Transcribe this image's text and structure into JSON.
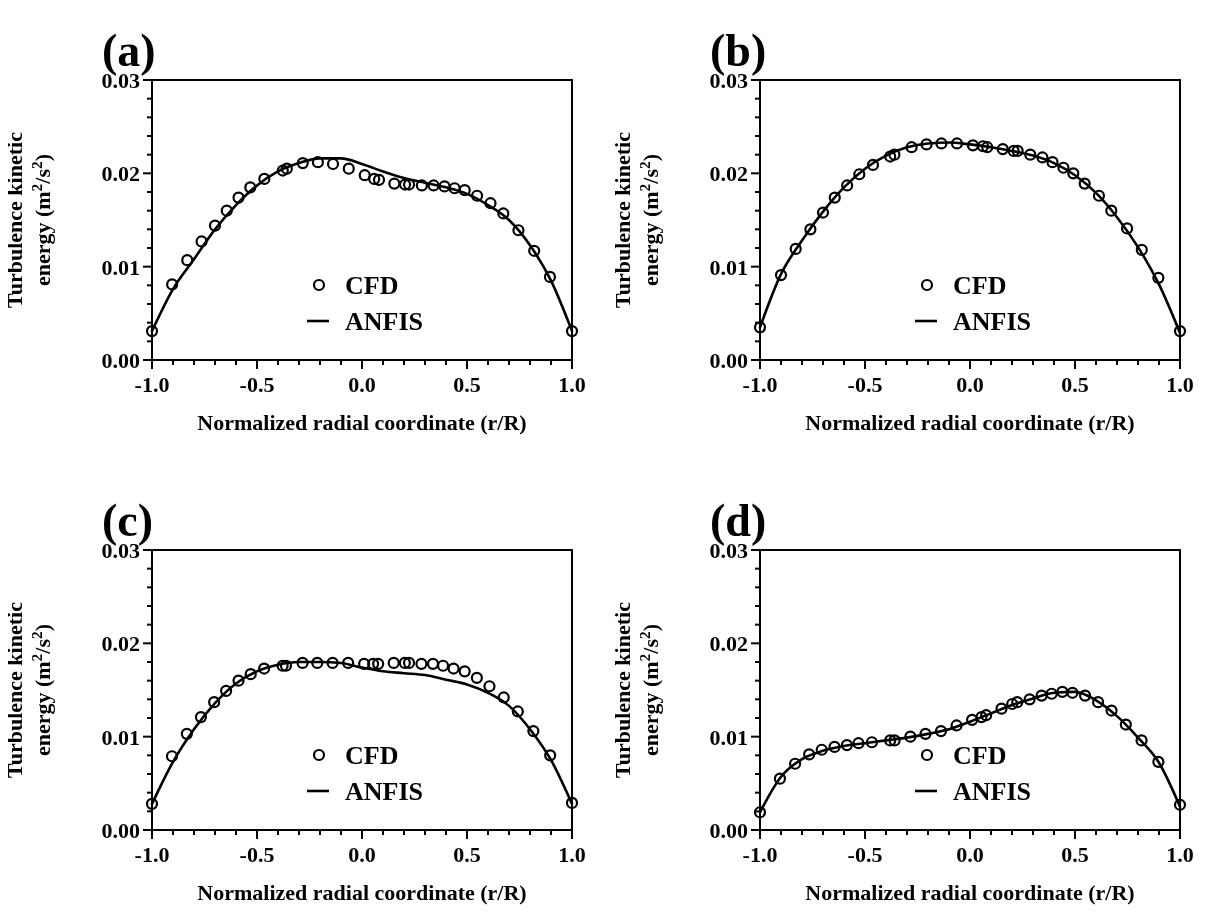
{
  "chart_data": [
    {
      "type": "line",
      "title": "(a)",
      "xlabel": "Normalized radial coordinate (r/R)",
      "ylabel": "Turbulence kinetic energy (m$^{2}$/s$^{2}$)",
      "xlim": [
        -1,
        1
      ],
      "ylim": [
        0,
        0.03
      ],
      "xticks": [
        {
          "value": -1,
          "label": "-1.0"
        },
        {
          "value": -0.9,
          "label": null
        },
        {
          "value": -0.8,
          "label": null
        },
        {
          "value": -0.7,
          "label": null
        },
        {
          "value": -0.6,
          "label": null
        },
        {
          "value": -0.5,
          "label": "-0.5"
        },
        {
          "value": -0.4,
          "label": null
        },
        {
          "value": -0.3,
          "label": null
        },
        {
          "value": -0.2,
          "label": null
        },
        {
          "value": -0.1,
          "label": null
        },
        {
          "value": 0,
          "label": "0.0"
        },
        {
          "value": 0.1,
          "label": null
        },
        {
          "value": 0.2,
          "label": null
        },
        {
          "value": 0.3,
          "label": null
        },
        {
          "value": 0.4,
          "label": null
        },
        {
          "value": 0.5,
          "label": "0.5"
        },
        {
          "value": 0.6,
          "label": null
        },
        {
          "value": 0.7,
          "label": null
        },
        {
          "value": 0.8,
          "label": null
        },
        {
          "value": 0.9,
          "label": null
        },
        {
          "value": 1,
          "label": "1.0"
        }
      ],
      "yticks": [
        {
          "value": 0,
          "label": "0.00"
        },
        {
          "value": 0.002,
          "label": null
        },
        {
          "value": 0.004,
          "label": null
        },
        {
          "value": 0.006,
          "label": null
        },
        {
          "value": 0.008,
          "label": null
        },
        {
          "value": 0.01,
          "label": "0.01"
        },
        {
          "value": 0.012,
          "label": null
        },
        {
          "value": 0.014,
          "label": null
        },
        {
          "value": 0.016,
          "label": null
        },
        {
          "value": 0.018,
          "label": null
        },
        {
          "value": 0.02,
          "label": "0.02"
        },
        {
          "value": 0.022,
          "label": null
        },
        {
          "value": 0.024,
          "label": null
        },
        {
          "value": 0.026,
          "label": null
        },
        {
          "value": 0.028,
          "label": null
        },
        {
          "value": 0.03,
          "label": "0.03"
        }
      ],
      "grid": false,
      "legend": "bottom",
      "series": [
        {
          "name": "CFD",
          "type": "scatter",
          "marker": "circle",
          "color": "#000000",
          "x": [
            -1,
            -0.904,
            -0.832,
            -0.764,
            -0.7,
            -0.644,
            -0.588,
            -0.532,
            -0.465,
            -0.377,
            -0.358,
            -0.282,
            -0.21,
            -0.138,
            -0.063,
            0.013,
            0.058,
            0.081,
            0.154,
            0.205,
            0.224,
            0.285,
            0.341,
            0.393,
            0.441,
            0.489,
            0.548,
            0.612,
            0.673,
            0.745,
            0.82,
            0.895,
            1
          ],
          "values": [
            0.0031,
            0.0081,
            0.0107,
            0.0127,
            0.0144,
            0.016,
            0.0174,
            0.0185,
            0.0194,
            0.0203,
            0.0205,
            0.0211,
            0.0212,
            0.021,
            0.0205,
            0.0198,
            0.0194,
            0.0193,
            0.0189,
            0.0188,
            0.0188,
            0.0187,
            0.0187,
            0.0186,
            0.0184,
            0.0182,
            0.0176,
            0.0168,
            0.0157,
            0.0139,
            0.0117,
            0.0089,
            0.0031
          ]
        },
        {
          "name": "ANFIS",
          "type": "line",
          "marker": "none",
          "line_style": "solid",
          "color": "#000000",
          "x": [
            -1,
            -0.9,
            -0.8,
            -0.7,
            -0.6,
            -0.5,
            -0.4,
            -0.3,
            -0.2,
            -0.1,
            0,
            0.1,
            0.2,
            0.3,
            0.4,
            0.5,
            0.6,
            0.7,
            0.8,
            0.9,
            1
          ],
          "values": [
            0.0031,
            0.0076,
            0.0108,
            0.014,
            0.0166,
            0.0187,
            0.0202,
            0.0211,
            0.0216,
            0.0216,
            0.021,
            0.0202,
            0.0195,
            0.019,
            0.0185,
            0.0178,
            0.0166,
            0.015,
            0.0123,
            0.0085,
            0.0031
          ]
        }
      ]
    },
    {
      "type": "line",
      "title": "(b)",
      "xlabel": "Normalized radial coordinate (r/R)",
      "ylabel": "Turbulence kinetic energy (m$^{2}$/s$^{2}$)",
      "xlim": [
        -1,
        1
      ],
      "ylim": [
        0,
        0.03
      ],
      "xticks": [
        {
          "value": -1,
          "label": "-1.0"
        },
        {
          "value": -0.9,
          "label": null
        },
        {
          "value": -0.8,
          "label": null
        },
        {
          "value": -0.7,
          "label": null
        },
        {
          "value": -0.6,
          "label": null
        },
        {
          "value": -0.5,
          "label": "-0.5"
        },
        {
          "value": -0.4,
          "label": null
        },
        {
          "value": -0.3,
          "label": null
        },
        {
          "value": -0.2,
          "label": null
        },
        {
          "value": -0.1,
          "label": null
        },
        {
          "value": 0,
          "label": "0.0"
        },
        {
          "value": 0.1,
          "label": null
        },
        {
          "value": 0.2,
          "label": null
        },
        {
          "value": 0.3,
          "label": null
        },
        {
          "value": 0.4,
          "label": null
        },
        {
          "value": 0.5,
          "label": "0.5"
        },
        {
          "value": 0.6,
          "label": null
        },
        {
          "value": 0.7,
          "label": null
        },
        {
          "value": 0.8,
          "label": null
        },
        {
          "value": 0.9,
          "label": null
        },
        {
          "value": 1,
          "label": "1.0"
        }
      ],
      "yticks": [
        {
          "value": 0,
          "label": "0.00"
        },
        {
          "value": 0.002,
          "label": null
        },
        {
          "value": 0.004,
          "label": null
        },
        {
          "value": 0.006,
          "label": null
        },
        {
          "value": 0.008,
          "label": null
        },
        {
          "value": 0.01,
          "label": "0.01"
        },
        {
          "value": 0.012,
          "label": null
        },
        {
          "value": 0.014,
          "label": null
        },
        {
          "value": 0.016,
          "label": null
        },
        {
          "value": 0.018,
          "label": null
        },
        {
          "value": 0.02,
          "label": "0.02"
        },
        {
          "value": 0.022,
          "label": null
        },
        {
          "value": 0.024,
          "label": null
        },
        {
          "value": 0.026,
          "label": null
        },
        {
          "value": 0.028,
          "label": null
        },
        {
          "value": 0.03,
          "label": "0.03"
        }
      ],
      "grid": false,
      "legend": "bottom",
      "series": [
        {
          "name": "CFD",
          "type": "scatter",
          "marker": "circle",
          "color": "#000000",
          "x": [
            -1,
            -0.9,
            -0.83,
            -0.76,
            -0.7,
            -0.644,
            -0.585,
            -0.527,
            -0.462,
            -0.38,
            -0.36,
            -0.278,
            -0.207,
            -0.136,
            -0.062,
            0.014,
            0.062,
            0.082,
            0.156,
            0.208,
            0.227,
            0.287,
            0.345,
            0.393,
            0.445,
            0.492,
            0.546,
            0.614,
            0.673,
            0.748,
            0.818,
            0.897,
            1
          ],
          "values": [
            0.0035,
            0.0091,
            0.0119,
            0.014,
            0.0158,
            0.0174,
            0.0187,
            0.0199,
            0.0209,
            0.0218,
            0.022,
            0.0228,
            0.0231,
            0.0232,
            0.0232,
            0.023,
            0.0229,
            0.0228,
            0.0226,
            0.0224,
            0.0224,
            0.022,
            0.0217,
            0.0212,
            0.0206,
            0.02,
            0.0189,
            0.0176,
            0.016,
            0.0141,
            0.0118,
            0.0088,
            0.0031
          ]
        },
        {
          "name": "ANFIS",
          "type": "line",
          "marker": "none",
          "line_style": "solid",
          "color": "#000000",
          "x": [
            -1,
            -0.9,
            -0.8,
            -0.7,
            -0.6,
            -0.5,
            -0.4,
            -0.3,
            -0.2,
            -0.1,
            0,
            0.1,
            0.2,
            0.3,
            0.4,
            0.5,
            0.6,
            0.7,
            0.8,
            0.9,
            1
          ],
          "values": [
            0.0035,
            0.0092,
            0.0128,
            0.0159,
            0.0185,
            0.0205,
            0.0219,
            0.0228,
            0.0232,
            0.0233,
            0.0231,
            0.0228,
            0.0224,
            0.0219,
            0.0211,
            0.0198,
            0.0179,
            0.0153,
            0.0121,
            0.0081,
            0.0029
          ]
        }
      ]
    },
    {
      "type": "line",
      "title": "(c)",
      "xlabel": "Normalized radial coordinate (r/R)",
      "ylabel": "Turbulence kinetic energy (m$^{2}$/s$^{2}$)",
      "xlim": [
        -1,
        1
      ],
      "ylim": [
        0,
        0.03
      ],
      "xticks": [
        {
          "value": -1,
          "label": "-1.0"
        },
        {
          "value": -0.9,
          "label": null
        },
        {
          "value": -0.8,
          "label": null
        },
        {
          "value": -0.7,
          "label": null
        },
        {
          "value": -0.6,
          "label": null
        },
        {
          "value": -0.5,
          "label": "-0.5"
        },
        {
          "value": -0.4,
          "label": null
        },
        {
          "value": -0.3,
          "label": null
        },
        {
          "value": -0.2,
          "label": null
        },
        {
          "value": -0.1,
          "label": null
        },
        {
          "value": 0,
          "label": "0.0"
        },
        {
          "value": 0.1,
          "label": null
        },
        {
          "value": 0.2,
          "label": null
        },
        {
          "value": 0.3,
          "label": null
        },
        {
          "value": 0.4,
          "label": null
        },
        {
          "value": 0.5,
          "label": "0.5"
        },
        {
          "value": 0.6,
          "label": null
        },
        {
          "value": 0.7,
          "label": null
        },
        {
          "value": 0.8,
          "label": null
        },
        {
          "value": 0.9,
          "label": null
        },
        {
          "value": 1,
          "label": "1.0"
        }
      ],
      "yticks": [
        {
          "value": 0,
          "label": "0.00"
        },
        {
          "value": 0.002,
          "label": null
        },
        {
          "value": 0.004,
          "label": null
        },
        {
          "value": 0.006,
          "label": null
        },
        {
          "value": 0.008,
          "label": null
        },
        {
          "value": 0.01,
          "label": "0.01"
        },
        {
          "value": 0.012,
          "label": null
        },
        {
          "value": 0.014,
          "label": null
        },
        {
          "value": 0.016,
          "label": null
        },
        {
          "value": 0.018,
          "label": null
        },
        {
          "value": 0.02,
          "label": "0.02"
        },
        {
          "value": 0.022,
          "label": null
        },
        {
          "value": 0.024,
          "label": null
        },
        {
          "value": 0.026,
          "label": null
        },
        {
          "value": 0.028,
          "label": null
        },
        {
          "value": 0.03,
          "label": "0.03"
        }
      ],
      "grid": false,
      "legend": "bottom",
      "series": [
        {
          "name": "CFD",
          "type": "scatter",
          "marker": "circle",
          "color": "#000000",
          "x": [
            -1,
            -0.905,
            -0.834,
            -0.767,
            -0.704,
            -0.647,
            -0.588,
            -0.53,
            -0.466,
            -0.378,
            -0.362,
            -0.283,
            -0.213,
            -0.14,
            -0.066,
            0.01,
            0.053,
            0.077,
            0.151,
            0.204,
            0.224,
            0.283,
            0.338,
            0.386,
            0.436,
            0.489,
            0.547,
            0.607,
            0.675,
            0.742,
            0.816,
            0.896,
            1
          ],
          "values": [
            0.0028,
            0.0079,
            0.0103,
            0.0121,
            0.0137,
            0.0149,
            0.016,
            0.0167,
            0.0173,
            0.0176,
            0.0176,
            0.0179,
            0.0179,
            0.0179,
            0.0179,
            0.0178,
            0.0178,
            0.0178,
            0.0179,
            0.0179,
            0.0179,
            0.0178,
            0.0178,
            0.0176,
            0.0173,
            0.017,
            0.0163,
            0.0154,
            0.0142,
            0.0127,
            0.0106,
            0.008,
            0.0029
          ]
        },
        {
          "name": "ANFIS",
          "type": "line",
          "marker": "none",
          "line_style": "solid",
          "color": "#000000",
          "x": [
            -1,
            -0.9,
            -0.8,
            -0.7,
            -0.6,
            -0.5,
            -0.4,
            -0.3,
            -0.2,
            -0.1,
            0,
            0.1,
            0.2,
            0.3,
            0.4,
            0.5,
            0.6,
            0.7,
            0.8,
            0.9,
            1
          ],
          "values": [
            0.0028,
            0.0073,
            0.0108,
            0.0136,
            0.0157,
            0.017,
            0.0177,
            0.018,
            0.018,
            0.0179,
            0.0174,
            0.017,
            0.0168,
            0.0166,
            0.0161,
            0.0156,
            0.0147,
            0.0133,
            0.0108,
            0.0075,
            0.0028
          ]
        }
      ]
    },
    {
      "type": "line",
      "title": "(d)",
      "xlabel": "Normalized radial coordinate (r/R)",
      "ylabel": "Turbulence kinetic energy (m$^{2}$/s$^{2}$)",
      "xlim": [
        -1,
        1
      ],
      "ylim": [
        0,
        0.03
      ],
      "xticks": [
        {
          "value": -1,
          "label": "-1.0"
        },
        {
          "value": -0.9,
          "label": null
        },
        {
          "value": -0.8,
          "label": null
        },
        {
          "value": -0.7,
          "label": null
        },
        {
          "value": -0.6,
          "label": null
        },
        {
          "value": -0.5,
          "label": "-0.5"
        },
        {
          "value": -0.4,
          "label": null
        },
        {
          "value": -0.3,
          "label": null
        },
        {
          "value": -0.2,
          "label": null
        },
        {
          "value": -0.1,
          "label": null
        },
        {
          "value": 0,
          "label": "0.0"
        },
        {
          "value": 0.1,
          "label": null
        },
        {
          "value": 0.2,
          "label": null
        },
        {
          "value": 0.3,
          "label": null
        },
        {
          "value": 0.4,
          "label": null
        },
        {
          "value": 0.5,
          "label": "0.5"
        },
        {
          "value": 0.6,
          "label": null
        },
        {
          "value": 0.7,
          "label": null
        },
        {
          "value": 0.8,
          "label": null
        },
        {
          "value": 0.9,
          "label": null
        },
        {
          "value": 1,
          "label": "1.0"
        }
      ],
      "yticks": [
        {
          "value": 0,
          "label": "0.00"
        },
        {
          "value": 0.002,
          "label": null
        },
        {
          "value": 0.004,
          "label": null
        },
        {
          "value": 0.006,
          "label": null
        },
        {
          "value": 0.008,
          "label": null
        },
        {
          "value": 0.01,
          "label": "0.01"
        },
        {
          "value": 0.012,
          "label": null
        },
        {
          "value": 0.014,
          "label": null
        },
        {
          "value": 0.016,
          "label": null
        },
        {
          "value": 0.018,
          "label": null
        },
        {
          "value": 0.02,
          "label": "0.02"
        },
        {
          "value": 0.022,
          "label": null
        },
        {
          "value": 0.024,
          "label": null
        },
        {
          "value": 0.026,
          "label": null
        },
        {
          "value": 0.028,
          "label": null
        },
        {
          "value": 0.03,
          "label": "0.03"
        }
      ],
      "grid": false,
      "legend": "bottom",
      "series": [
        {
          "name": "CFD",
          "type": "scatter",
          "marker": "circle",
          "color": "#000000",
          "x": [
            -1,
            -0.905,
            -0.833,
            -0.766,
            -0.706,
            -0.645,
            -0.586,
            -0.531,
            -0.467,
            -0.38,
            -0.359,
            -0.284,
            -0.212,
            -0.138,
            -0.064,
            0.01,
            0.055,
            0.077,
            0.15,
            0.201,
            0.225,
            0.284,
            0.341,
            0.389,
            0.44,
            0.488,
            0.548,
            0.61,
            0.674,
            0.742,
            0.817,
            0.897,
            1
          ],
          "values": [
            0.0019,
            0.0055,
            0.0071,
            0.0081,
            0.0086,
            0.0089,
            0.0091,
            0.0093,
            0.0094,
            0.0096,
            0.0096,
            0.01,
            0.0103,
            0.0106,
            0.0112,
            0.0118,
            0.0121,
            0.0123,
            0.013,
            0.0135,
            0.0137,
            0.014,
            0.0144,
            0.0146,
            0.0148,
            0.0147,
            0.0144,
            0.0137,
            0.0128,
            0.0113,
            0.0096,
            0.0073,
            0.0027
          ]
        },
        {
          "name": "ANFIS",
          "type": "line",
          "marker": "none",
          "line_style": "solid",
          "color": "#000000",
          "x": [
            -1,
            -0.9,
            -0.8,
            -0.7,
            -0.6,
            -0.5,
            -0.4,
            -0.3,
            -0.2,
            -0.1,
            0,
            0.1,
            0.2,
            0.3,
            0.4,
            0.5,
            0.6,
            0.7,
            0.8,
            0.9,
            1
          ],
          "values": [
            0.0019,
            0.0057,
            0.0076,
            0.0085,
            0.009,
            0.0093,
            0.0096,
            0.0099,
            0.0103,
            0.0108,
            0.0116,
            0.0125,
            0.0134,
            0.0141,
            0.0147,
            0.0148,
            0.0139,
            0.0122,
            0.0099,
            0.0072,
            0.0025
          ]
        }
      ]
    }
  ]
}
